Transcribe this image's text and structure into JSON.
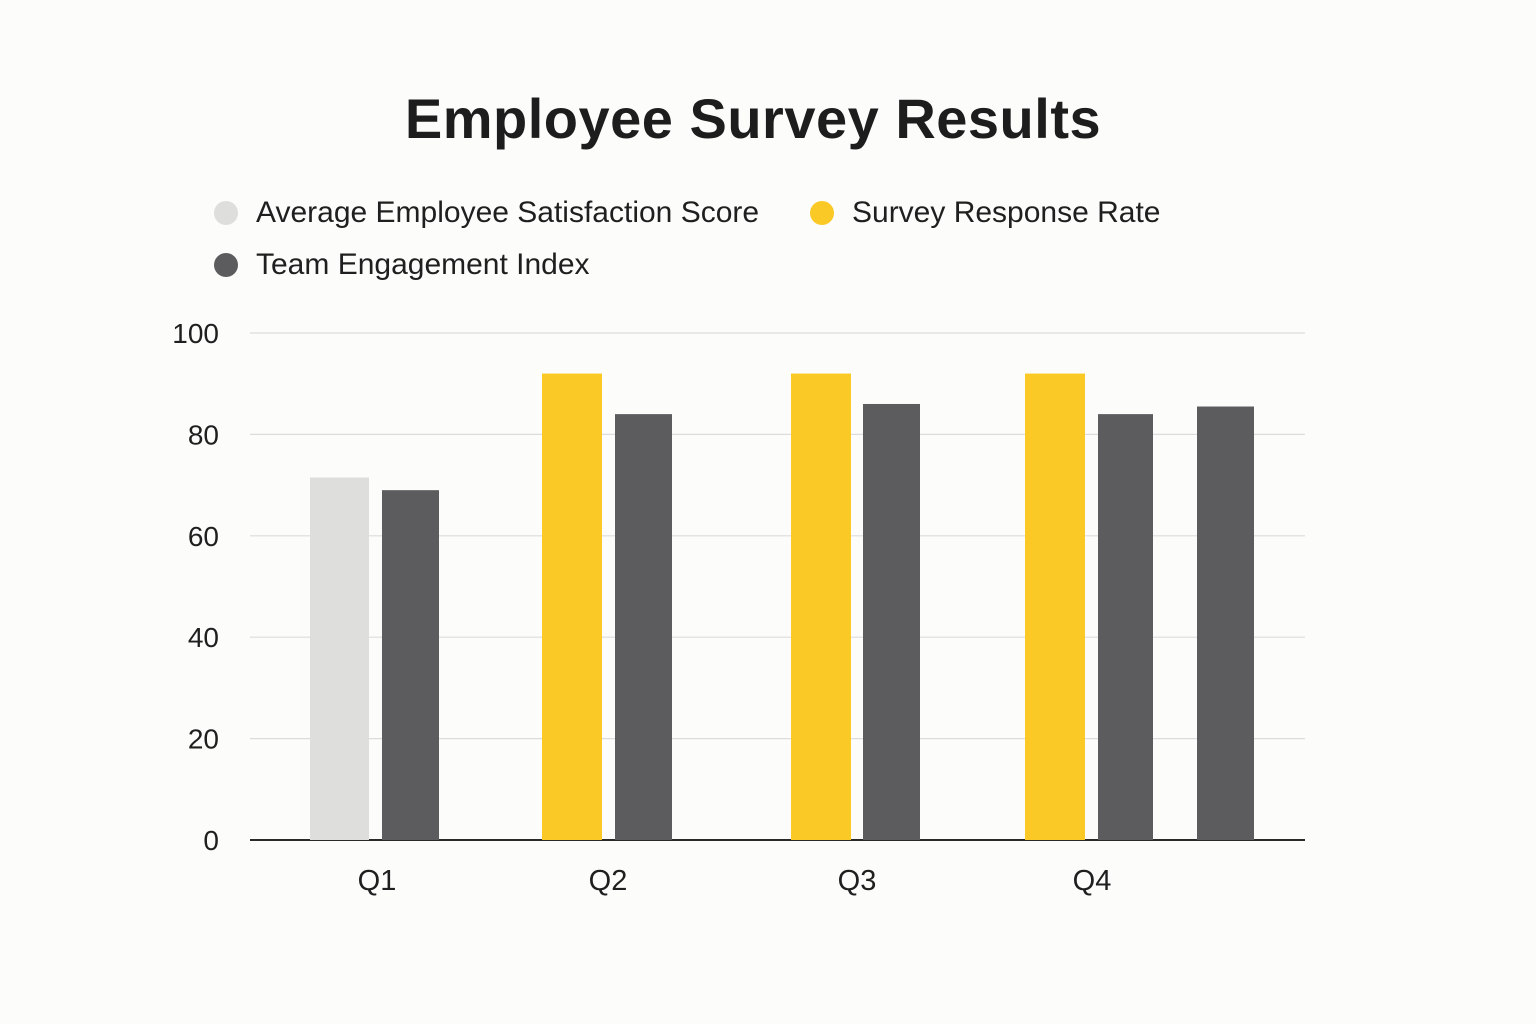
{
  "chart_data": {
    "type": "bar",
    "title": "Employee Survey Results",
    "xlabel": "",
    "ylabel": "",
    "ylim": [
      0,
      100
    ],
    "yticks": [
      0,
      20,
      40,
      60,
      80,
      100
    ],
    "grid": true,
    "legend_position": "top-left",
    "categories": [
      "Q1",
      "Q2",
      "Q3",
      "Q4"
    ],
    "series": [
      {
        "name": "Average Employee Satisfaction Score",
        "color": "#dededc",
        "values": [
          71.5,
          null,
          null,
          null
        ]
      },
      {
        "name": "Survey Response Rate",
        "color": "#fbc925",
        "values": [
          null,
          92,
          92,
          92
        ]
      },
      {
        "name": "Team Engagement Index",
        "color": "#5c5b5d",
        "values": [
          69,
          84,
          86,
          84
        ]
      }
    ],
    "extra_bars": [
      {
        "category": "Q4",
        "series": "Team Engagement Index",
        "value": 85.5
      }
    ]
  }
}
